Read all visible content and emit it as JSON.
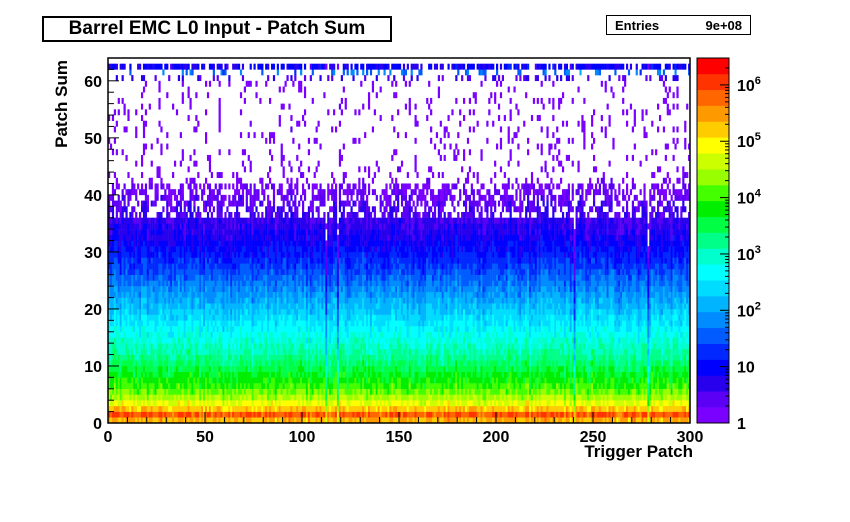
{
  "stats": {
    "entries_label": "Entries",
    "entries_value": "9e+08"
  },
  "chart_data": {
    "type": "heatmap",
    "title": "Barrel EMC L0 Input - Patch Sum",
    "xlabel": "Trigger Patch",
    "ylabel": "Patch Sum",
    "xlim": [
      0,
      300
    ],
    "ylim": [
      0,
      64
    ],
    "x_ticks": [
      0,
      50,
      100,
      150,
      200,
      250,
      300
    ],
    "y_ticks": [
      0,
      10,
      20,
      30,
      40,
      50,
      60
    ],
    "z_scale": "log",
    "zlim": [
      1,
      3000000
    ],
    "z_tick_labels": [
      {
        "value": 1,
        "label": "1"
      },
      {
        "value": 10,
        "label": "10"
      },
      {
        "value": 100,
        "label": "10",
        "exp": "2"
      },
      {
        "value": 1000,
        "label": "10",
        "exp": "3"
      },
      {
        "value": 10000,
        "label": "10",
        "exp": "4"
      },
      {
        "value": 100000,
        "label": "10",
        "exp": "5"
      },
      {
        "value": 1000000,
        "label": "10",
        "exp": "6"
      }
    ],
    "palette": [
      "#7a00ff",
      "#5b00f5",
      "#2800ee",
      "#0000ff",
      "#0028ff",
      "#005cff",
      "#008cff",
      "#00b4ff",
      "#00dcff",
      "#00ffff",
      "#00ffcc",
      "#00ff88",
      "#00ff44",
      "#00ee00",
      "#44ff00",
      "#99ff00",
      "#ccff00",
      "#ffff00",
      "#ffcc00",
      "#ff9900",
      "#ff6600",
      "#ff3300",
      "#ff0000"
    ],
    "density_profile": [
      {
        "y": 0,
        "count": 30000
      },
      {
        "y": 1,
        "count": 2000000
      },
      {
        "y": 2,
        "count": 300000
      },
      {
        "y": 4,
        "count": 40000
      },
      {
        "y": 6,
        "count": 12000
      },
      {
        "y": 8,
        "count": 6000
      },
      {
        "y": 10,
        "count": 3000
      },
      {
        "y": 12,
        "count": 1500
      },
      {
        "y": 15,
        "count": 700
      },
      {
        "y": 18,
        "count": 300
      },
      {
        "y": 20,
        "count": 180
      },
      {
        "y": 24,
        "count": 60
      },
      {
        "y": 28,
        "count": 20
      },
      {
        "y": 32,
        "count": 8
      },
      {
        "y": 36,
        "count": 4
      },
      {
        "y": 40,
        "count": 2
      },
      {
        "y": 45,
        "count": 1
      },
      {
        "y": 60,
        "count": 1
      },
      {
        "y": 62,
        "count": 200
      },
      {
        "y": 63,
        "count": 0
      }
    ],
    "grid": false
  }
}
